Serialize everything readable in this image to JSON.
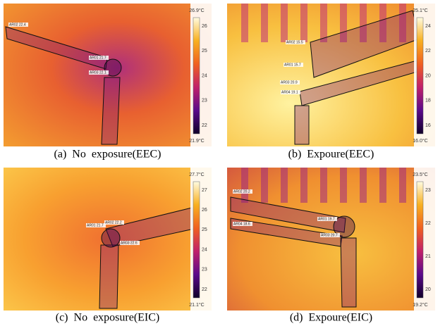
{
  "panels": [
    {
      "caption": "(a)  No  exposure(EEC)",
      "scale_max": "26.9°C",
      "scale_min": "21.9°C",
      "scale_ticks": [
        "26",
        "25",
        "24",
        "23",
        "22"
      ],
      "regions": [
        "AR02  22.4",
        "AR01  21.7",
        "AR03  22.1"
      ]
    },
    {
      "caption": "(b)  Expoure(EEC)",
      "scale_max": "25.1°C",
      "scale_min": "16.0°C",
      "scale_ticks": [
        "24",
        "22",
        "20",
        "18",
        "16"
      ],
      "regions": [
        "AR02  15.5",
        "AR01  15.7",
        "AR03  20.9",
        "AR04  19.1"
      ]
    },
    {
      "caption": "(c)  No  exposure(EIC)",
      "scale_max": "27.7°C",
      "scale_min": "21.1°C",
      "scale_ticks": [
        "27",
        "26",
        "25",
        "24",
        "23",
        "22"
      ],
      "regions": [
        "AR01  21.7",
        "AR02  22.2",
        "AR03  22.6"
      ]
    },
    {
      "caption": "(d)  Expoure(EIC)",
      "scale_max": "23.5°C",
      "scale_min": "19.2°C",
      "scale_ticks": [
        "23",
        "22",
        "21",
        "20"
      ],
      "regions": [
        "AR02  20.2",
        "AR01  19.7",
        "AR04  18.6",
        "AR03  20.7"
      ]
    }
  ]
}
